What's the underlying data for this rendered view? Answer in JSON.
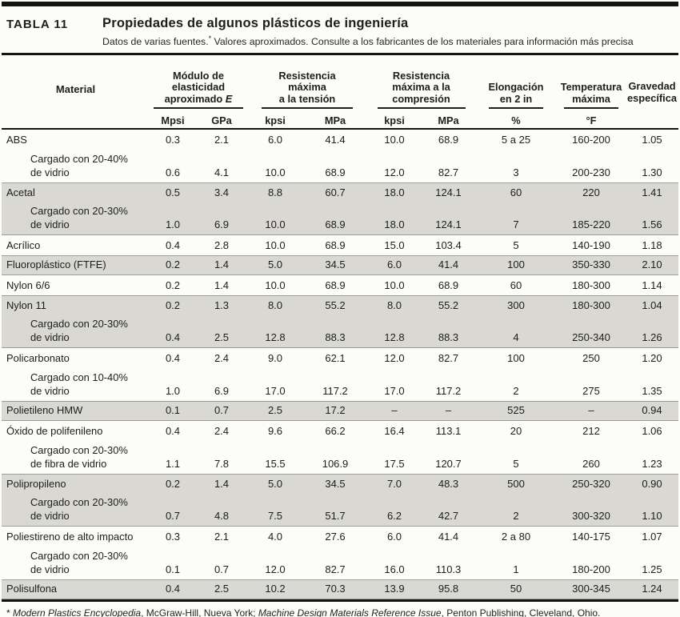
{
  "page": {
    "table_label": "TABLA  11",
    "title": "Propiedades de algunos plásticos de ingeniería",
    "subtitle": {
      "prefix": "Datos de varias fuentes.",
      "asterisk": "*",
      "rest": " Valores aproximados. Consulte a los fabricantes de los materiales para información más precisa"
    }
  },
  "header": {
    "material": "Material",
    "groups": [
      {
        "line1": "Módulo de",
        "line2": "elasticidad",
        "line3_prefix": "aproximado ",
        "line3_italic": "E"
      },
      {
        "line1": "Resistencia",
        "line2": "máxima",
        "line3": "a la tensión"
      },
      {
        "line1": "Resistencia",
        "line2": "máxima a la",
        "line3": "compresión"
      },
      {
        "line1": "Elongación",
        "line2": "en 2 in"
      },
      {
        "line1": "Temperatura",
        "line2": "máxima"
      },
      {
        "line1": "Gravedad",
        "line2": "específica"
      }
    ],
    "units": [
      "Mpsi",
      "GPa",
      "kpsi",
      "MPa",
      "kpsi",
      "MPa",
      "%",
      "°F"
    ]
  },
  "table": {
    "columns": [
      "Material",
      "Mpsi",
      "GPa",
      "kpsi tensión",
      "MPa tensión",
      "kpsi compresión",
      "MPa compresión",
      "Elongación %",
      "Temperatura °F",
      "Gravedad específica"
    ],
    "rows": [
      {
        "material": "ABS",
        "indent": false,
        "shaded": false,
        "values": [
          "0.3",
          "2.1",
          "6.0",
          "41.4",
          "10.0",
          "68.9",
          "5 a 25",
          "160-200",
          "1.05"
        ]
      },
      {
        "material": "Cargado con 20-40%",
        "material2": "de vidrio",
        "indent": true,
        "shaded": false,
        "values": [
          "0.6",
          "4.1",
          "10.0",
          "68.9",
          "12.0",
          "82.7",
          "3",
          "200-230",
          "1.30"
        ]
      },
      {
        "material": "Acetal",
        "indent": false,
        "shaded": true,
        "values": [
          "0.5",
          "3.4",
          "8.8",
          "60.7",
          "18.0",
          "124.1",
          "60",
          "220",
          "1.41"
        ]
      },
      {
        "material": "Cargado con 20-30%",
        "material2": "de vidrio",
        "indent": true,
        "shaded": true,
        "values": [
          "1.0",
          "6.9",
          "10.0",
          "68.9",
          "18.0",
          "124.1",
          "7",
          "185-220",
          "1.56"
        ]
      },
      {
        "material": "Acrílico",
        "indent": false,
        "shaded": false,
        "values": [
          "0.4",
          "2.8",
          "10.0",
          "68.9",
          "15.0",
          "103.4",
          "5",
          "140-190",
          "1.18"
        ]
      },
      {
        "material": "Fluoroplástico (FTFE)",
        "indent": false,
        "shaded": true,
        "values": [
          "0.2",
          "1.4",
          "5.0",
          "34.5",
          "6.0",
          "41.4",
          "100",
          "350-330",
          "2.10"
        ]
      },
      {
        "material": "Nylon 6/6",
        "indent": false,
        "shaded": false,
        "values": [
          "0.2",
          "1.4",
          "10.0",
          "68.9",
          "10.0",
          "68.9",
          "60",
          "180-300",
          "1.14"
        ]
      },
      {
        "material": "Nylon 11",
        "indent": false,
        "shaded": true,
        "values": [
          "0.2",
          "1.3",
          "8.0",
          "55.2",
          "8.0",
          "55.2",
          "300",
          "180-300",
          "1.04"
        ]
      },
      {
        "material": "Cargado con 20-30%",
        "material2": "de vidrio",
        "indent": true,
        "shaded": true,
        "values": [
          "0.4",
          "2.5",
          "12.8",
          "88.3",
          "12.8",
          "88.3",
          "4",
          "250-340",
          "1.26"
        ]
      },
      {
        "material": "Policarbonato",
        "indent": false,
        "shaded": false,
        "values": [
          "0.4",
          "2.4",
          "9.0",
          "62.1",
          "12.0",
          "82.7",
          "100",
          "250",
          "1.20"
        ]
      },
      {
        "material": "Cargado con 10-40%",
        "material2": "de vidrio",
        "indent": true,
        "shaded": false,
        "values": [
          "1.0",
          "6.9",
          "17.0",
          "117.2",
          "17.0",
          "117.2",
          "2",
          "275",
          "1.35"
        ]
      },
      {
        "material": "Polietileno HMW",
        "indent": false,
        "shaded": true,
        "values": [
          "0.1",
          "0.7",
          "2.5",
          "17.2",
          "–",
          "–",
          "525",
          "–",
          "0.94"
        ]
      },
      {
        "material": "Óxido de polifenileno",
        "indent": false,
        "shaded": false,
        "values": [
          "0.4",
          "2.4",
          "9.6",
          "66.2",
          "16.4",
          "113.1",
          "20",
          "212",
          "1.06"
        ]
      },
      {
        "material": "Cargado con 20-30%",
        "material2": "de fibra de vidrio",
        "indent": true,
        "shaded": false,
        "values": [
          "1.1",
          "7.8",
          "15.5",
          "106.9",
          "17.5",
          "120.7",
          "5",
          "260",
          "1.23"
        ]
      },
      {
        "material": "Polipropileno",
        "indent": false,
        "shaded": true,
        "values": [
          "0.2",
          "1.4",
          "5.0",
          "34.5",
          "7.0",
          "48.3",
          "500",
          "250-320",
          "0.90"
        ]
      },
      {
        "material": "Cargado con 20-30%",
        "material2": "de vidrio",
        "indent": true,
        "shaded": true,
        "values": [
          "0.7",
          "4.8",
          "7.5",
          "51.7",
          "6.2",
          "42.7",
          "2",
          "300-320",
          "1.10"
        ]
      },
      {
        "material": "Poliestireno de alto impacto",
        "indent": false,
        "shaded": false,
        "values": [
          "0.3",
          "2.1",
          "4.0",
          "27.6",
          "6.0",
          "41.4",
          "2 a 80",
          "140-175",
          "1.07"
        ]
      },
      {
        "material": "Cargado con 20-30%",
        "material2": "de vidrio",
        "indent": true,
        "shaded": false,
        "values": [
          "0.1",
          "0.7",
          "12.0",
          "82.7",
          "16.0",
          "110.3",
          "1",
          "180-200",
          "1.25"
        ]
      },
      {
        "material": "Polisulfona",
        "indent": false,
        "shaded": true,
        "values": [
          "0.4",
          "2.5",
          "10.2",
          "70.3",
          "13.9",
          "95.8",
          "50",
          "300-345",
          "1.24"
        ]
      }
    ]
  },
  "footnote": {
    "marker": "* ",
    "italic1": "Modern Plastics Encyclopedia",
    "mid": ",  McGraw-Hill, Nueva York; ",
    "italic2": "Machine Design Materials Reference Issue",
    "suffix": ", Penton Publishing, Cleveland, Ohio."
  },
  "colors": {
    "shaded_row": "#d9d8d3",
    "rule": "#141414",
    "page_bg": "#fcfcf9",
    "text": "#1d1d1b"
  }
}
